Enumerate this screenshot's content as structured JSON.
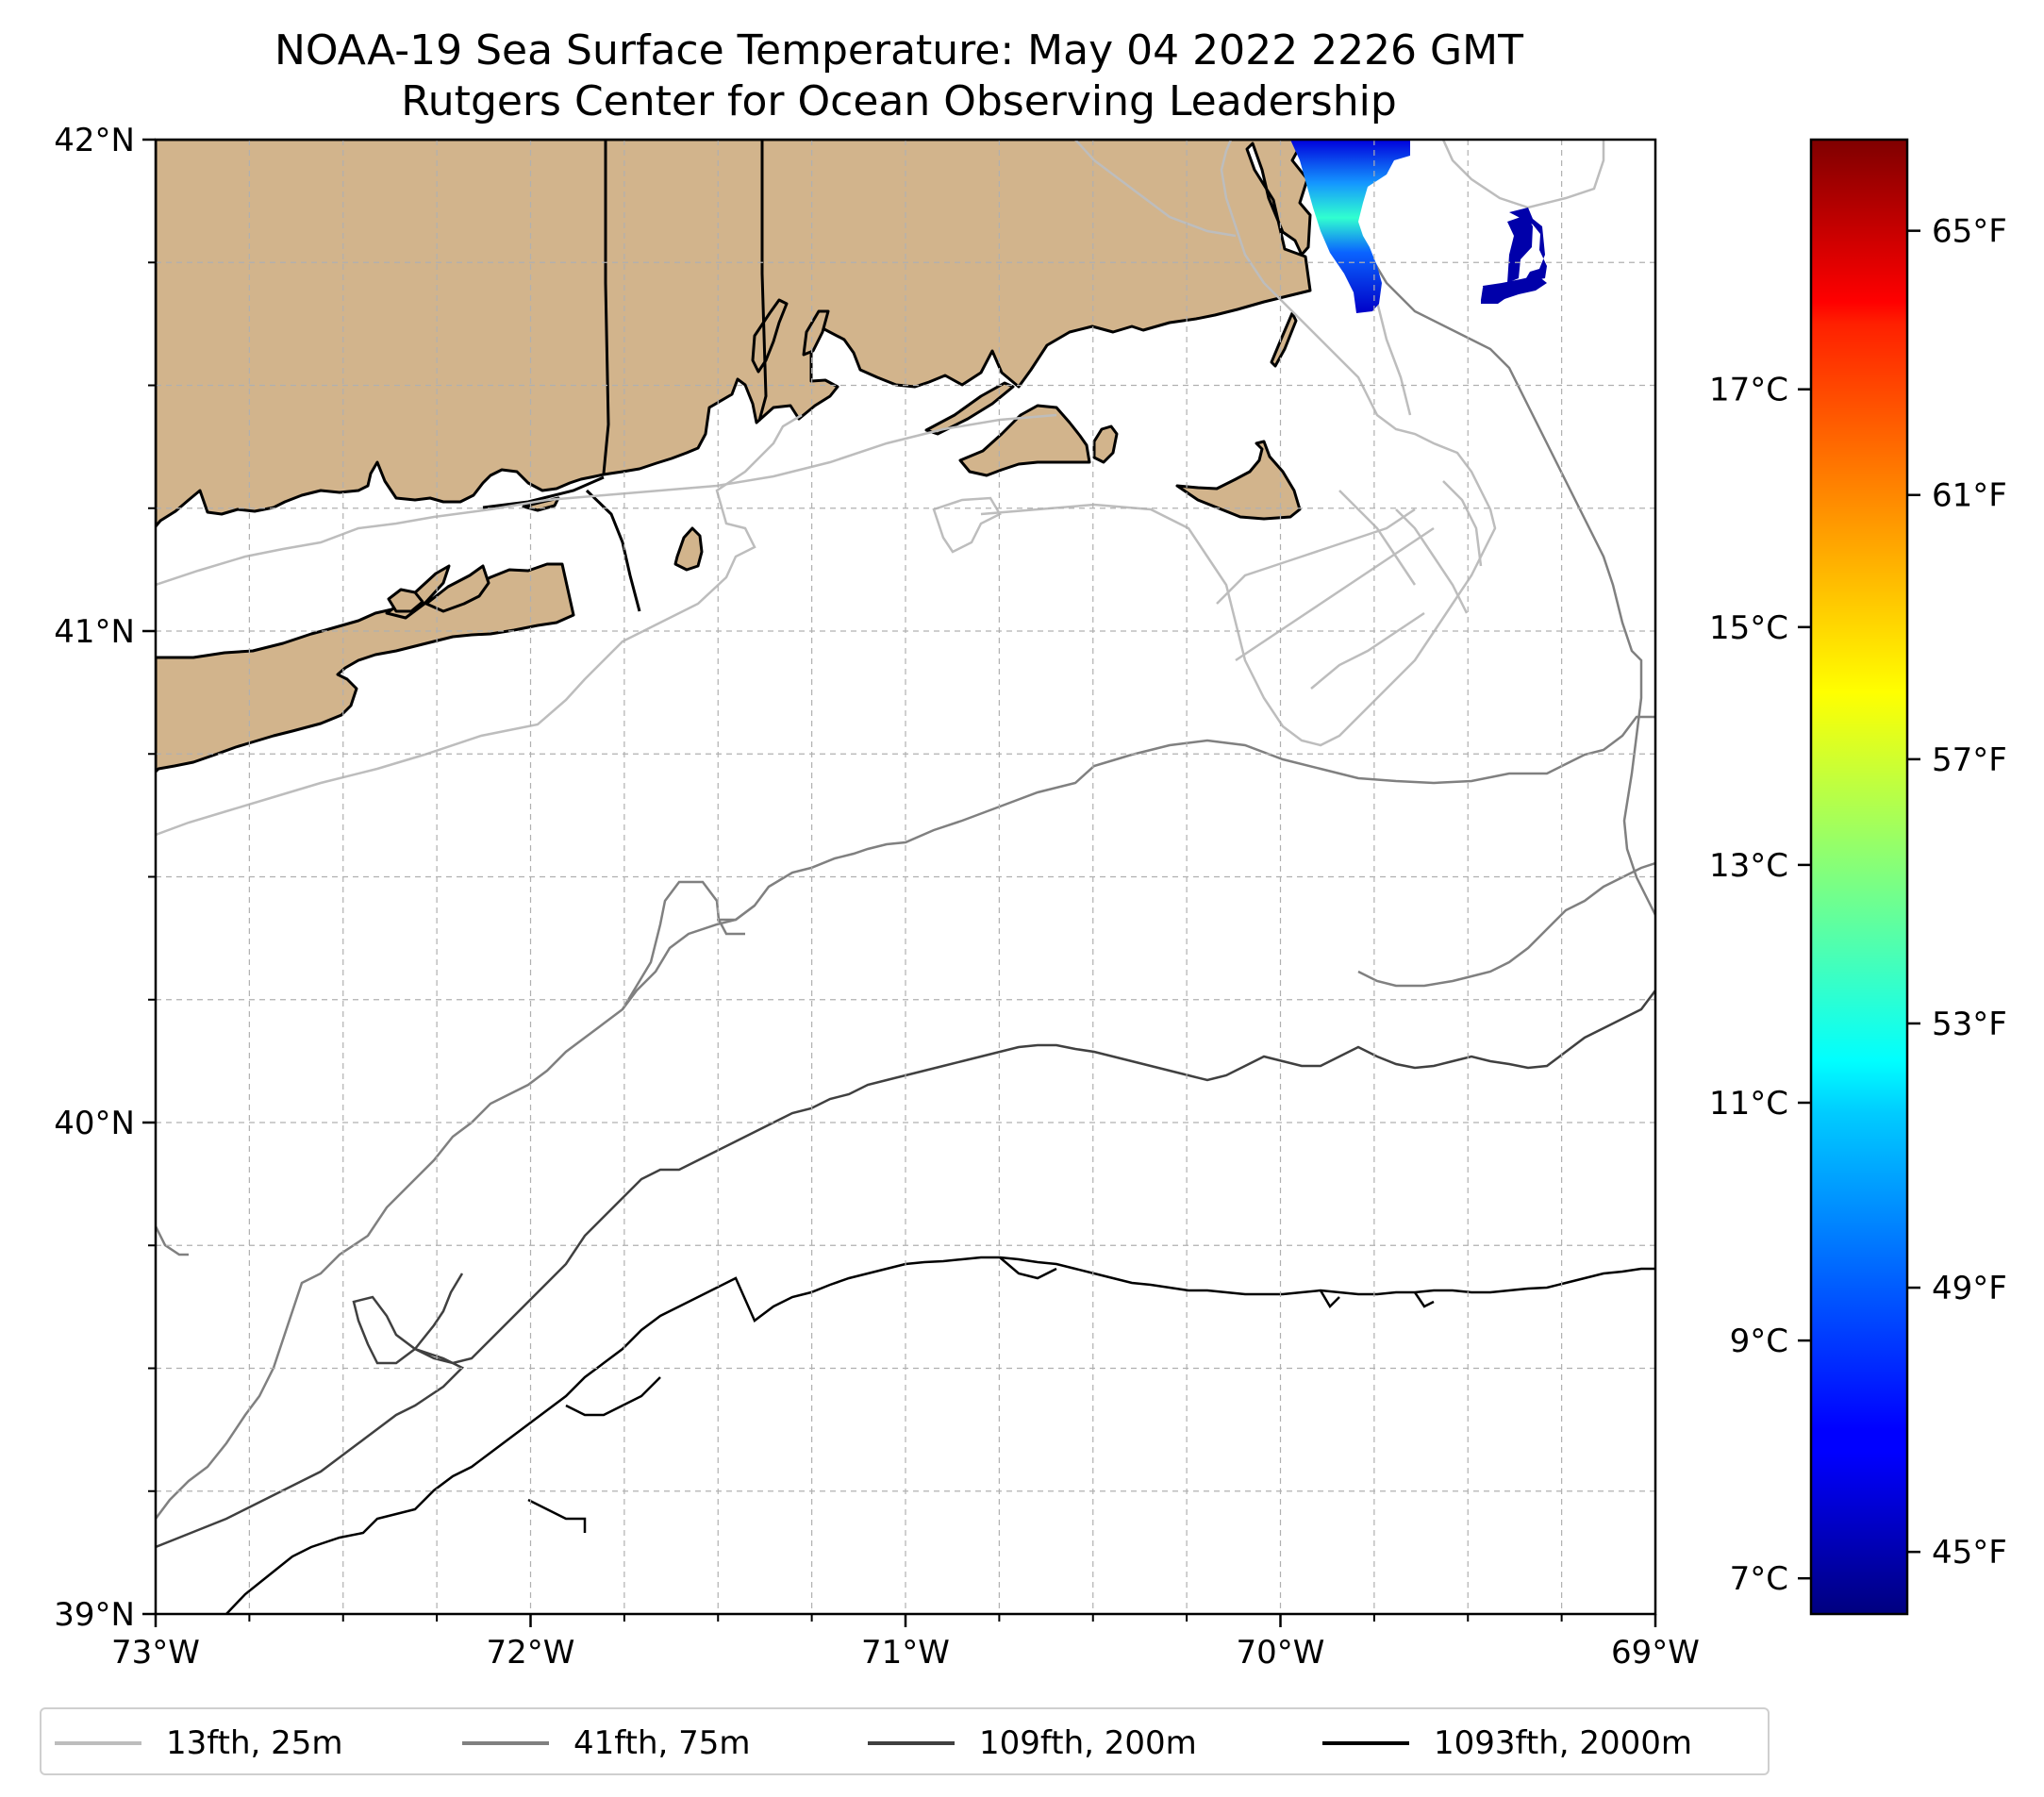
{
  "title": {
    "line1": "NOAA-19 Sea Surface Temperature: May 04 2022 2226 GMT",
    "line2": "Rutgers Center for Ocean Observing Leadership"
  },
  "axes": {
    "lon_ticks": [
      {
        "value": -73,
        "label": "73°W"
      },
      {
        "value": -72,
        "label": "72°W"
      },
      {
        "value": -71,
        "label": "71°W"
      },
      {
        "value": -70,
        "label": "70°W"
      },
      {
        "value": -69,
        "label": "69°W"
      }
    ],
    "lat_ticks": [
      {
        "value": 42,
        "label": "42°N"
      },
      {
        "value": 41,
        "label": "41°N"
      },
      {
        "value": 40,
        "label": "40°N"
      },
      {
        "value": 39,
        "label": "39°N"
      }
    ],
    "lon_range": [
      -73,
      -69
    ],
    "lat_range": [
      39,
      42
    ],
    "grid": true
  },
  "colorbar": {
    "colormap": "jet",
    "celsius_ticks": [
      {
        "value": 7,
        "label": "7°C"
      },
      {
        "value": 9,
        "label": "9°C"
      },
      {
        "value": 11,
        "label": "11°C"
      },
      {
        "value": 13,
        "label": "13°C"
      },
      {
        "value": 15,
        "label": "15°C"
      },
      {
        "value": 17,
        "label": "17°C"
      }
    ],
    "fahrenheit_ticks": [
      {
        "value": 45,
        "label": "45°F"
      },
      {
        "value": 49,
        "label": "49°F"
      },
      {
        "value": 53,
        "label": "53°F"
      },
      {
        "value": 57,
        "label": "57°F"
      },
      {
        "value": 61,
        "label": "61°F"
      },
      {
        "value": 65,
        "label": "65°F"
      }
    ]
  },
  "legend": {
    "placement": "bottom",
    "entries": [
      {
        "label": "13fth, 25m",
        "color": "#bdbdbd"
      },
      {
        "label": "41fth, 75m",
        "color": "#808080"
      },
      {
        "label": "109fth, 200m",
        "color": "#404040"
      },
      {
        "label": "1093fth, 2000m",
        "color": "#000000"
      }
    ]
  },
  "colors": {
    "land": "#d2b48c",
    "coast": "#000000",
    "grid": "#b0b0b0"
  }
}
